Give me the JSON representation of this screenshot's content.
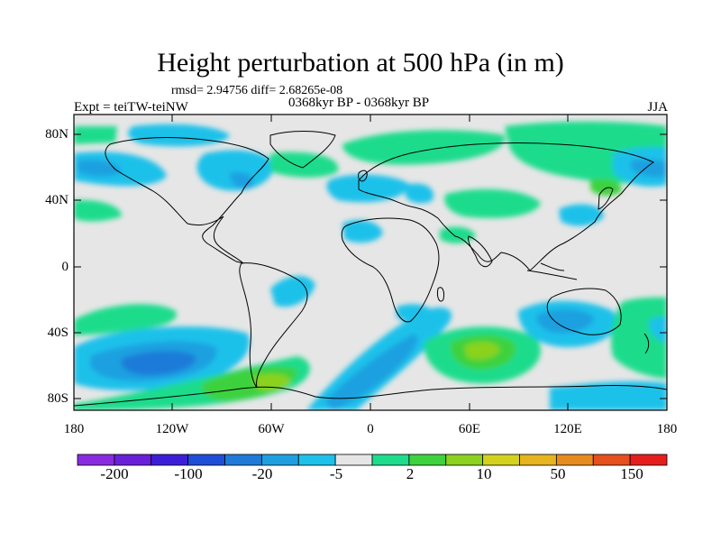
{
  "title": "Height perturbation at 500 hPa (in m)",
  "stats": "rmsd= 2.94756 diff= 2.68265e-08",
  "experiment": "Expt = teiTW-teiNW",
  "period": "0368kyr BP - 0368kyr BP",
  "season": "JJA",
  "map": {
    "ocean_color": "#e6e6e6",
    "coast_color": "#000000",
    "lat_labels": [
      "80N",
      "40N",
      "0",
      "40S",
      "80S"
    ],
    "lon_labels": [
      "180",
      "120W",
      "60W",
      "0",
      "60E",
      "120E",
      "180"
    ]
  },
  "colorbar": {
    "colors": [
      "#8a2be2",
      "#6a1fd8",
      "#3d1ed8",
      "#1e4ed8",
      "#1f7ad8",
      "#1ea0e0",
      "#1ec1ea",
      "#e6e6e6",
      "#1edc8c",
      "#3ed23e",
      "#8ad21e",
      "#d2d21e",
      "#e6b41e",
      "#e68c1e",
      "#e6501e",
      "#e61e1e"
    ],
    "labels": [
      "-200",
      "-100",
      "-20",
      "-5",
      "2",
      "10",
      "50",
      "150"
    ]
  }
}
